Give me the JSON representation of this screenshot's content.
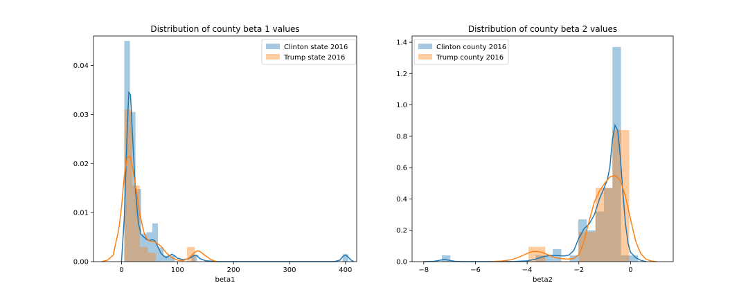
{
  "chart_data": [
    {
      "type": "histogram",
      "title": "Distribution of county beta 1 values",
      "xlabel": "beta1",
      "ylabel": "",
      "xlim": [
        -50,
        420
      ],
      "ylim": [
        0,
        0.046
      ],
      "xticks": [
        "0",
        "100",
        "200",
        "300",
        "400"
      ],
      "xtick_values": [
        0,
        100,
        200,
        300,
        400
      ],
      "yticks": [
        "0.00",
        "0.01",
        "0.02",
        "0.03",
        "0.04"
      ],
      "ytick_values": [
        0,
        0.01,
        0.02,
        0.03,
        0.04
      ],
      "legend": {
        "placement": "top-right",
        "entries": [
          "Clinton state 2016",
          "Trump state 2016"
        ]
      },
      "series": [
        {
          "name": "Clinton state 2016",
          "color": "#1f77b4",
          "bin_edges": [
            5,
            15,
            25,
            35,
            45,
            55,
            65,
            75,
            85,
            95,
            105,
            115,
            125,
            135,
            145,
            155,
            165,
            175,
            185,
            195,
            205,
            215,
            225,
            235,
            245,
            255,
            265,
            275,
            285,
            295,
            305,
            315,
            325,
            335,
            345,
            355,
            365,
            375,
            385,
            395,
            405
          ],
          "density": [
            0.045,
            0.0305,
            0.0148,
            0.0057,
            0.006,
            0.0078,
            0.0029,
            0.0012,
            0.0012,
            0.0,
            0.0,
            0.0,
            0.0014,
            0,
            0,
            0,
            0,
            0,
            0,
            0,
            0,
            0,
            0,
            0,
            0,
            0,
            0,
            0,
            0,
            0,
            0,
            0,
            0,
            0,
            0,
            0,
            0,
            0,
            0,
            0.0015
          ],
          "kde_x": [
            0,
            5,
            10,
            13,
            16,
            20,
            25,
            30,
            35,
            40,
            45,
            50,
            55,
            60,
            65,
            70,
            75,
            80,
            85,
            90,
            95,
            100,
            110,
            120,
            125,
            130,
            135,
            140,
            150,
            170,
            200,
            250,
            300,
            350,
            380,
            390,
            395,
            400,
            405,
            410,
            415
          ],
          "kde_y": [
            0.0,
            0.009,
            0.026,
            0.0345,
            0.034,
            0.025,
            0.0145,
            0.008,
            0.0055,
            0.005,
            0.0045,
            0.0043,
            0.0045,
            0.0042,
            0.003,
            0.0018,
            0.0012,
            0.0008,
            0.0012,
            0.0015,
            0.0012,
            0.0007,
            0.0004,
            0.0006,
            0.0009,
            0.0013,
            0.0012,
            0.0006,
            0.0002,
            0.0,
            0.0,
            0.0,
            0.0,
            0.0,
            0.0,
            0.0003,
            0.001,
            0.0014,
            0.0009,
            0.0003,
            0.0
          ]
        },
        {
          "name": "Trump state 2016",
          "color": "#ff7f0e",
          "bin_edges": [
            5,
            19,
            33,
            47,
            61,
            75,
            89,
            103,
            117,
            131,
            145
          ],
          "density": [
            0.031,
            0.0155,
            0.003,
            0.0018,
            0.0,
            0.0,
            0.0,
            0.0,
            0.003,
            0.0
          ],
          "kde_x": [
            -35,
            -25,
            -15,
            -5,
            0,
            5,
            10,
            15,
            20,
            25,
            30,
            35,
            40,
            45,
            50,
            55,
            60,
            70,
            80,
            90,
            100,
            110,
            120,
            130,
            135,
            140,
            150,
            160,
            170
          ],
          "kde_y": [
            0.0,
            0.0003,
            0.0013,
            0.0065,
            0.011,
            0.0175,
            0.0212,
            0.0215,
            0.019,
            0.0155,
            0.0115,
            0.0085,
            0.006,
            0.0047,
            0.0042,
            0.0041,
            0.004,
            0.0032,
            0.0018,
            0.0008,
            0.0003,
            0.0002,
            0.0007,
            0.0018,
            0.0022,
            0.0021,
            0.0012,
            0.0004,
            0.0
          ]
        }
      ]
    },
    {
      "type": "histogram",
      "title": "Distribution of county beta 2 values",
      "xlabel": "beta2",
      "ylabel": "",
      "xlim": [
        -8.45,
        1.65
      ],
      "ylim": [
        0,
        1.44
      ],
      "xticks": [
        "−8",
        "−6",
        "−4",
        "−2",
        "0"
      ],
      "xtick_values": [
        -8,
        -6,
        -4,
        -2,
        0
      ],
      "yticks": [
        "0.0",
        "0.2",
        "0.4",
        "0.6",
        "0.8",
        "1.0",
        "1.2",
        "1.4"
      ],
      "ytick_values": [
        0,
        0.2,
        0.4,
        0.6,
        0.8,
        1.0,
        1.2,
        1.4
      ],
      "legend": {
        "placement": "top-left",
        "entries": [
          "Clinton county 2016",
          "Trump county 2016"
        ]
      },
      "series": [
        {
          "name": "Clinton county 2016",
          "color": "#1f77b4",
          "bin_edges": [
            -7.3,
            -6.97,
            -6.64,
            -6.31,
            -5.98,
            -5.65,
            -5.32,
            -4.99,
            -4.66,
            -4.33,
            -4.0,
            -3.67,
            -3.34,
            -3.01,
            -2.68,
            -2.35,
            -2.02,
            -1.69,
            -1.36,
            -1.03,
            -0.7,
            -0.37,
            -0.04,
            0.29
          ],
          "density": [
            0.04,
            0.0,
            0.0,
            0.0,
            0.0,
            0.0,
            0.0,
            0.0,
            0.0,
            0.0,
            0.0,
            0.04,
            0.04,
            0.08,
            0.0,
            0.04,
            0.27,
            0.2,
            0.32,
            0.47,
            1.37,
            0.04,
            0.04
          ],
          "kde_x": [
            -8.0,
            -7.6,
            -7.4,
            -7.2,
            -7.0,
            -6.8,
            -6.5,
            -6.0,
            -5.0,
            -4.5,
            -4.0,
            -3.7,
            -3.4,
            -3.1,
            -2.8,
            -2.6,
            -2.4,
            -2.2,
            -2.0,
            -1.8,
            -1.6,
            -1.4,
            -1.2,
            -1.0,
            -0.9,
            -0.8,
            -0.7,
            -0.6,
            -0.5,
            -0.4,
            -0.3,
            -0.2,
            -0.1,
            0.0,
            0.2,
            0.4,
            0.6
          ],
          "kde_y": [
            0.0,
            0.002,
            0.008,
            0.014,
            0.008,
            0.002,
            0.0,
            0.0,
            0.0,
            0.001,
            0.005,
            0.015,
            0.03,
            0.04,
            0.038,
            0.036,
            0.04,
            0.07,
            0.15,
            0.21,
            0.24,
            0.3,
            0.4,
            0.48,
            0.52,
            0.6,
            0.78,
            0.87,
            0.84,
            0.68,
            0.45,
            0.25,
            0.12,
            0.06,
            0.025,
            0.008,
            0.0
          ]
        },
        {
          "name": "Trump county 2016",
          "color": "#ff7f0e",
          "bin_edges": [
            -3.95,
            -3.3,
            -2.65,
            -2.0,
            -1.35,
            -0.7,
            -0.05
          ],
          "density": [
            0.095,
            0.0,
            0.0,
            0.19,
            0.47,
            0.84
          ],
          "kde_x": [
            -5.4,
            -5.0,
            -4.6,
            -4.3,
            -4.0,
            -3.8,
            -3.6,
            -3.4,
            -3.2,
            -3.0,
            -2.8,
            -2.6,
            -2.4,
            -2.2,
            -2.0,
            -1.8,
            -1.6,
            -1.4,
            -1.2,
            -1.0,
            -0.8,
            -0.6,
            -0.4,
            -0.2,
            0.0,
            0.2,
            0.4,
            0.6,
            0.8,
            1.0
          ],
          "kde_y": [
            0.0,
            0.003,
            0.012,
            0.03,
            0.052,
            0.064,
            0.065,
            0.058,
            0.044,
            0.03,
            0.022,
            0.018,
            0.016,
            0.02,
            0.045,
            0.13,
            0.26,
            0.38,
            0.45,
            0.5,
            0.54,
            0.55,
            0.52,
            0.42,
            0.27,
            0.13,
            0.05,
            0.015,
            0.004,
            0.0
          ]
        }
      ]
    }
  ]
}
